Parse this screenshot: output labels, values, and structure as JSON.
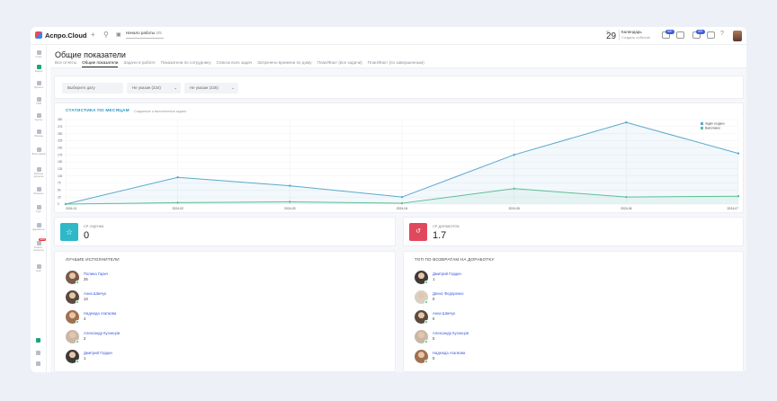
{
  "app": {
    "brand": "Аспро.Cloud"
  },
  "topbar": {
    "new_work_label": "Начало работы",
    "new_work_count": "2/5",
    "date_small": "ПТ",
    "date_day": "29",
    "calendar_title": "Календарь",
    "calendar_sub": "Создать событие",
    "badge_1": "99+",
    "badge_2": "99+"
  },
  "sidebar": {
    "items": [
      {
        "label": "Старт",
        "icon": "home-icon"
      },
      {
        "label": "Задачи",
        "icon": "tasks-icon"
      },
      {
        "label": "Проекты",
        "icon": "projects-icon"
      },
      {
        "label": "CRM",
        "icon": "crm-icon"
      },
      {
        "label": "Группы",
        "icon": "groups-icon"
      },
      {
        "label": "Помощь",
        "icon": "help-icon"
      },
      {
        "label": "База знаний",
        "icon": "knowledge-icon"
      },
      {
        "label": "Рабочие журналы",
        "icon": "journals-icon"
      },
      {
        "label": "Финансы",
        "icon": "finance-icon"
      },
      {
        "label": "Курс",
        "icon": "course-icon"
      },
      {
        "label": "Документы",
        "icon": "docs-icon"
      },
      {
        "label": "Бизнес-процессы",
        "icon": "process-icon",
        "badge": "NEW"
      },
      {
        "label": "Ещё",
        "icon": "more-icon"
      }
    ]
  },
  "page": {
    "title": "Общие показатели",
    "tabs": [
      "Все отчёты",
      "Общие показатели",
      "Задачи в работе",
      "Показатели по сотруднику",
      "Список всех задач",
      "Затрачено времени по дому",
      "План/Факт (все задачи)",
      "План/Факт (по завершенным)"
    ]
  },
  "filters": {
    "date_placeholder": "Выберите дату",
    "filter_1": "Не указан (224)",
    "filter_2": "Не указан (225)"
  },
  "chart_section": {
    "title": "СТАТИСТИКА ПО МЕСЯЦАМ",
    "subtitle": "Созданные и выполненные задачи"
  },
  "chart_data": {
    "type": "area",
    "x": [
      "2024-01",
      "2024-02",
      "2024-03",
      "2024-04",
      "2024-05",
      "2024-06",
      "2024-07"
    ],
    "yticks": [
      0,
      25,
      50,
      75,
      100,
      125,
      150,
      175,
      200,
      225,
      250,
      275,
      300
    ],
    "ylim": [
      0,
      300
    ],
    "grid": true,
    "legend": "top-right",
    "series": [
      {
        "name": "Задач создано",
        "color": "#5aa9cc",
        "values": [
          0,
          95,
          65,
          25,
          175,
          290,
          180
        ]
      },
      {
        "name": "Выполнено",
        "color": "#5fbf96",
        "values": [
          0,
          5,
          8,
          3,
          55,
          25,
          28
        ]
      }
    ]
  },
  "stats": {
    "rating_label": "СР. ОЦЕНКА",
    "rating_value": "0",
    "rework_label": "СР. ДОРАБОТОК",
    "rework_value": "1.7"
  },
  "best": {
    "title": "ЛУЧШИЕ ИСПОЛНИТЕЛИ",
    "people": [
      {
        "name": "Полина Гарич",
        "value": "25"
      },
      {
        "name": "Анна Швечук",
        "value": "13"
      },
      {
        "name": "Надежда Агапкова",
        "value": "4"
      },
      {
        "name": "Александр Кузнецов",
        "value": "2"
      },
      {
        "name": "Дмитрий Гордин",
        "value": "1"
      }
    ]
  },
  "returns": {
    "title": "ТОП ПО ВОЗВРАТАМ НА ДОРАБОТКУ",
    "people": [
      {
        "name": "Дмитрий Гордин",
        "value": "1"
      },
      {
        "name": "Денис Федоренко",
        "value": "0"
      },
      {
        "name": "Анна Швечук",
        "value": "0"
      },
      {
        "name": "Александр Кузнецов",
        "value": "0"
      },
      {
        "name": "Надежда Агапкова",
        "value": "0"
      }
    ]
  }
}
